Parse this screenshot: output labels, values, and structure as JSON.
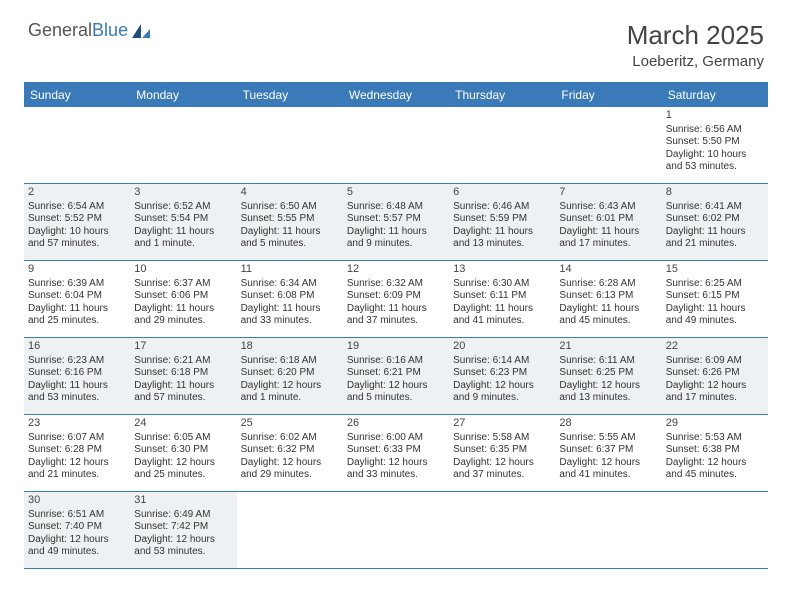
{
  "logo": {
    "text_general": "General",
    "text_blue": "Blue"
  },
  "header": {
    "month_title": "March 2025",
    "location": "Loeberitz, Germany"
  },
  "colors": {
    "accent": "#3a7ab8",
    "shaded_bg": "#eef1f3",
    "text": "#333333",
    "background": "#ffffff"
  },
  "weekdays": [
    "Sunday",
    "Monday",
    "Tuesday",
    "Wednesday",
    "Thursday",
    "Friday",
    "Saturday"
  ],
  "weeks": [
    [
      {
        "num": "",
        "sunrise": "",
        "sunset": "",
        "daylight": "",
        "shaded": false
      },
      {
        "num": "",
        "sunrise": "",
        "sunset": "",
        "daylight": "",
        "shaded": false
      },
      {
        "num": "",
        "sunrise": "",
        "sunset": "",
        "daylight": "",
        "shaded": false
      },
      {
        "num": "",
        "sunrise": "",
        "sunset": "",
        "daylight": "",
        "shaded": false
      },
      {
        "num": "",
        "sunrise": "",
        "sunset": "",
        "daylight": "",
        "shaded": false
      },
      {
        "num": "",
        "sunrise": "",
        "sunset": "",
        "daylight": "",
        "shaded": false
      },
      {
        "num": "1",
        "sunrise": "Sunrise: 6:56 AM",
        "sunset": "Sunset: 5:50 PM",
        "daylight": "Daylight: 10 hours and 53 minutes.",
        "shaded": false
      }
    ],
    [
      {
        "num": "2",
        "sunrise": "Sunrise: 6:54 AM",
        "sunset": "Sunset: 5:52 PM",
        "daylight": "Daylight: 10 hours and 57 minutes.",
        "shaded": true
      },
      {
        "num": "3",
        "sunrise": "Sunrise: 6:52 AM",
        "sunset": "Sunset: 5:54 PM",
        "daylight": "Daylight: 11 hours and 1 minute.",
        "shaded": true
      },
      {
        "num": "4",
        "sunrise": "Sunrise: 6:50 AM",
        "sunset": "Sunset: 5:55 PM",
        "daylight": "Daylight: 11 hours and 5 minutes.",
        "shaded": true
      },
      {
        "num": "5",
        "sunrise": "Sunrise: 6:48 AM",
        "sunset": "Sunset: 5:57 PM",
        "daylight": "Daylight: 11 hours and 9 minutes.",
        "shaded": true
      },
      {
        "num": "6",
        "sunrise": "Sunrise: 6:46 AM",
        "sunset": "Sunset: 5:59 PM",
        "daylight": "Daylight: 11 hours and 13 minutes.",
        "shaded": true
      },
      {
        "num": "7",
        "sunrise": "Sunrise: 6:43 AM",
        "sunset": "Sunset: 6:01 PM",
        "daylight": "Daylight: 11 hours and 17 minutes.",
        "shaded": true
      },
      {
        "num": "8",
        "sunrise": "Sunrise: 6:41 AM",
        "sunset": "Sunset: 6:02 PM",
        "daylight": "Daylight: 11 hours and 21 minutes.",
        "shaded": true
      }
    ],
    [
      {
        "num": "9",
        "sunrise": "Sunrise: 6:39 AM",
        "sunset": "Sunset: 6:04 PM",
        "daylight": "Daylight: 11 hours and 25 minutes.",
        "shaded": false
      },
      {
        "num": "10",
        "sunrise": "Sunrise: 6:37 AM",
        "sunset": "Sunset: 6:06 PM",
        "daylight": "Daylight: 11 hours and 29 minutes.",
        "shaded": false
      },
      {
        "num": "11",
        "sunrise": "Sunrise: 6:34 AM",
        "sunset": "Sunset: 6:08 PM",
        "daylight": "Daylight: 11 hours and 33 minutes.",
        "shaded": false
      },
      {
        "num": "12",
        "sunrise": "Sunrise: 6:32 AM",
        "sunset": "Sunset: 6:09 PM",
        "daylight": "Daylight: 11 hours and 37 minutes.",
        "shaded": false
      },
      {
        "num": "13",
        "sunrise": "Sunrise: 6:30 AM",
        "sunset": "Sunset: 6:11 PM",
        "daylight": "Daylight: 11 hours and 41 minutes.",
        "shaded": false
      },
      {
        "num": "14",
        "sunrise": "Sunrise: 6:28 AM",
        "sunset": "Sunset: 6:13 PM",
        "daylight": "Daylight: 11 hours and 45 minutes.",
        "shaded": false
      },
      {
        "num": "15",
        "sunrise": "Sunrise: 6:25 AM",
        "sunset": "Sunset: 6:15 PM",
        "daylight": "Daylight: 11 hours and 49 minutes.",
        "shaded": false
      }
    ],
    [
      {
        "num": "16",
        "sunrise": "Sunrise: 6:23 AM",
        "sunset": "Sunset: 6:16 PM",
        "daylight": "Daylight: 11 hours and 53 minutes.",
        "shaded": true
      },
      {
        "num": "17",
        "sunrise": "Sunrise: 6:21 AM",
        "sunset": "Sunset: 6:18 PM",
        "daylight": "Daylight: 11 hours and 57 minutes.",
        "shaded": true
      },
      {
        "num": "18",
        "sunrise": "Sunrise: 6:18 AM",
        "sunset": "Sunset: 6:20 PM",
        "daylight": "Daylight: 12 hours and 1 minute.",
        "shaded": true
      },
      {
        "num": "19",
        "sunrise": "Sunrise: 6:16 AM",
        "sunset": "Sunset: 6:21 PM",
        "daylight": "Daylight: 12 hours and 5 minutes.",
        "shaded": true
      },
      {
        "num": "20",
        "sunrise": "Sunrise: 6:14 AM",
        "sunset": "Sunset: 6:23 PM",
        "daylight": "Daylight: 12 hours and 9 minutes.",
        "shaded": true
      },
      {
        "num": "21",
        "sunrise": "Sunrise: 6:11 AM",
        "sunset": "Sunset: 6:25 PM",
        "daylight": "Daylight: 12 hours and 13 minutes.",
        "shaded": true
      },
      {
        "num": "22",
        "sunrise": "Sunrise: 6:09 AM",
        "sunset": "Sunset: 6:26 PM",
        "daylight": "Daylight: 12 hours and 17 minutes.",
        "shaded": true
      }
    ],
    [
      {
        "num": "23",
        "sunrise": "Sunrise: 6:07 AM",
        "sunset": "Sunset: 6:28 PM",
        "daylight": "Daylight: 12 hours and 21 minutes.",
        "shaded": false
      },
      {
        "num": "24",
        "sunrise": "Sunrise: 6:05 AM",
        "sunset": "Sunset: 6:30 PM",
        "daylight": "Daylight: 12 hours and 25 minutes.",
        "shaded": false
      },
      {
        "num": "25",
        "sunrise": "Sunrise: 6:02 AM",
        "sunset": "Sunset: 6:32 PM",
        "daylight": "Daylight: 12 hours and 29 minutes.",
        "shaded": false
      },
      {
        "num": "26",
        "sunrise": "Sunrise: 6:00 AM",
        "sunset": "Sunset: 6:33 PM",
        "daylight": "Daylight: 12 hours and 33 minutes.",
        "shaded": false
      },
      {
        "num": "27",
        "sunrise": "Sunrise: 5:58 AM",
        "sunset": "Sunset: 6:35 PM",
        "daylight": "Daylight: 12 hours and 37 minutes.",
        "shaded": false
      },
      {
        "num": "28",
        "sunrise": "Sunrise: 5:55 AM",
        "sunset": "Sunset: 6:37 PM",
        "daylight": "Daylight: 12 hours and 41 minutes.",
        "shaded": false
      },
      {
        "num": "29",
        "sunrise": "Sunrise: 5:53 AM",
        "sunset": "Sunset: 6:38 PM",
        "daylight": "Daylight: 12 hours and 45 minutes.",
        "shaded": false
      }
    ],
    [
      {
        "num": "30",
        "sunrise": "Sunrise: 6:51 AM",
        "sunset": "Sunset: 7:40 PM",
        "daylight": "Daylight: 12 hours and 49 minutes.",
        "shaded": true
      },
      {
        "num": "31",
        "sunrise": "Sunrise: 6:49 AM",
        "sunset": "Sunset: 7:42 PM",
        "daylight": "Daylight: 12 hours and 53 minutes.",
        "shaded": true
      },
      {
        "num": "",
        "sunrise": "",
        "sunset": "",
        "daylight": "",
        "shaded": false
      },
      {
        "num": "",
        "sunrise": "",
        "sunset": "",
        "daylight": "",
        "shaded": false
      },
      {
        "num": "",
        "sunrise": "",
        "sunset": "",
        "daylight": "",
        "shaded": false
      },
      {
        "num": "",
        "sunrise": "",
        "sunset": "",
        "daylight": "",
        "shaded": false
      },
      {
        "num": "",
        "sunrise": "",
        "sunset": "",
        "daylight": "",
        "shaded": false
      }
    ]
  ]
}
